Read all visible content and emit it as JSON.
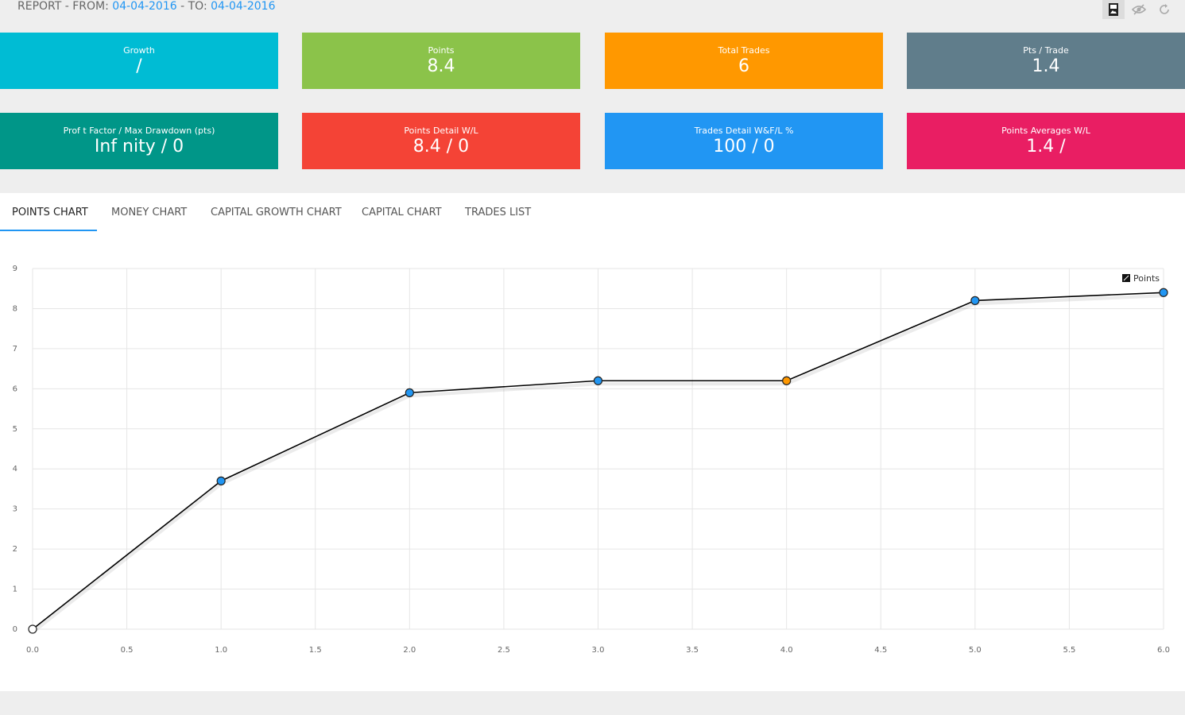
{
  "header": {
    "prefix": "REPORT - FROM:",
    "from": "04-04-2016",
    "to_label": "- TO:",
    "to": "04-04-2016"
  },
  "toolbar": {
    "icons": [
      "image-icon",
      "eye-slash-icon",
      "refresh-icon"
    ]
  },
  "cards": [
    {
      "label": "Growth",
      "value": "/",
      "color": "#00bcd4"
    },
    {
      "label": "Points",
      "value": "8.4",
      "color": "#8bc34a"
    },
    {
      "label": "Total Trades",
      "value": "6",
      "color": "#ff9800"
    },
    {
      "label": "Pts / Trade",
      "value": "1.4",
      "color": "#607d8b"
    },
    {
      "label": "Prof t Factor / Max Drawdown (pts)",
      "value": "Inf nity / 0",
      "color": "#009688"
    },
    {
      "label": "Points Detail W/L",
      "value": "8.4 / 0",
      "color": "#f44336"
    },
    {
      "label": "Trades Detail W&F/L %",
      "value": "100 / 0",
      "color": "#2196f3"
    },
    {
      "label": "Points Averages W/L",
      "value": "1.4 /",
      "color": "#e91e63"
    }
  ],
  "tabs": [
    {
      "label": "POINTS CHART",
      "active": true
    },
    {
      "label": "MONEY CHART"
    },
    {
      "label": "CAPITAL GROWTH CHART"
    },
    {
      "label": "CAPITAL CHART"
    },
    {
      "label": "TRADES LIST"
    }
  ],
  "chart_data": {
    "type": "line",
    "x": [
      0,
      1,
      2,
      3,
      4,
      5,
      6
    ],
    "series": [
      {
        "name": "Points",
        "values": [
          0,
          3.7,
          5.9,
          6.2,
          6.2,
          8.2,
          8.4
        ],
        "point_colors": [
          "#ffffff",
          "#2196f3",
          "#2196f3",
          "#2196f3",
          "#ff9800",
          "#2196f3",
          "#2196f3"
        ],
        "line_color": "#000000"
      }
    ],
    "xlim": [
      0,
      6
    ],
    "ylim": [
      0,
      9
    ],
    "x_ticks": [
      "0.0",
      "0.5",
      "1.0",
      "1.5",
      "2.0",
      "2.5",
      "3.0",
      "3.5",
      "4.0",
      "4.5",
      "5.0",
      "5.5",
      "6.0"
    ],
    "y_ticks": [
      "0",
      "1",
      "2",
      "3",
      "4",
      "5",
      "6",
      "7",
      "8",
      "9"
    ],
    "grid": true,
    "legend": "top-right"
  }
}
